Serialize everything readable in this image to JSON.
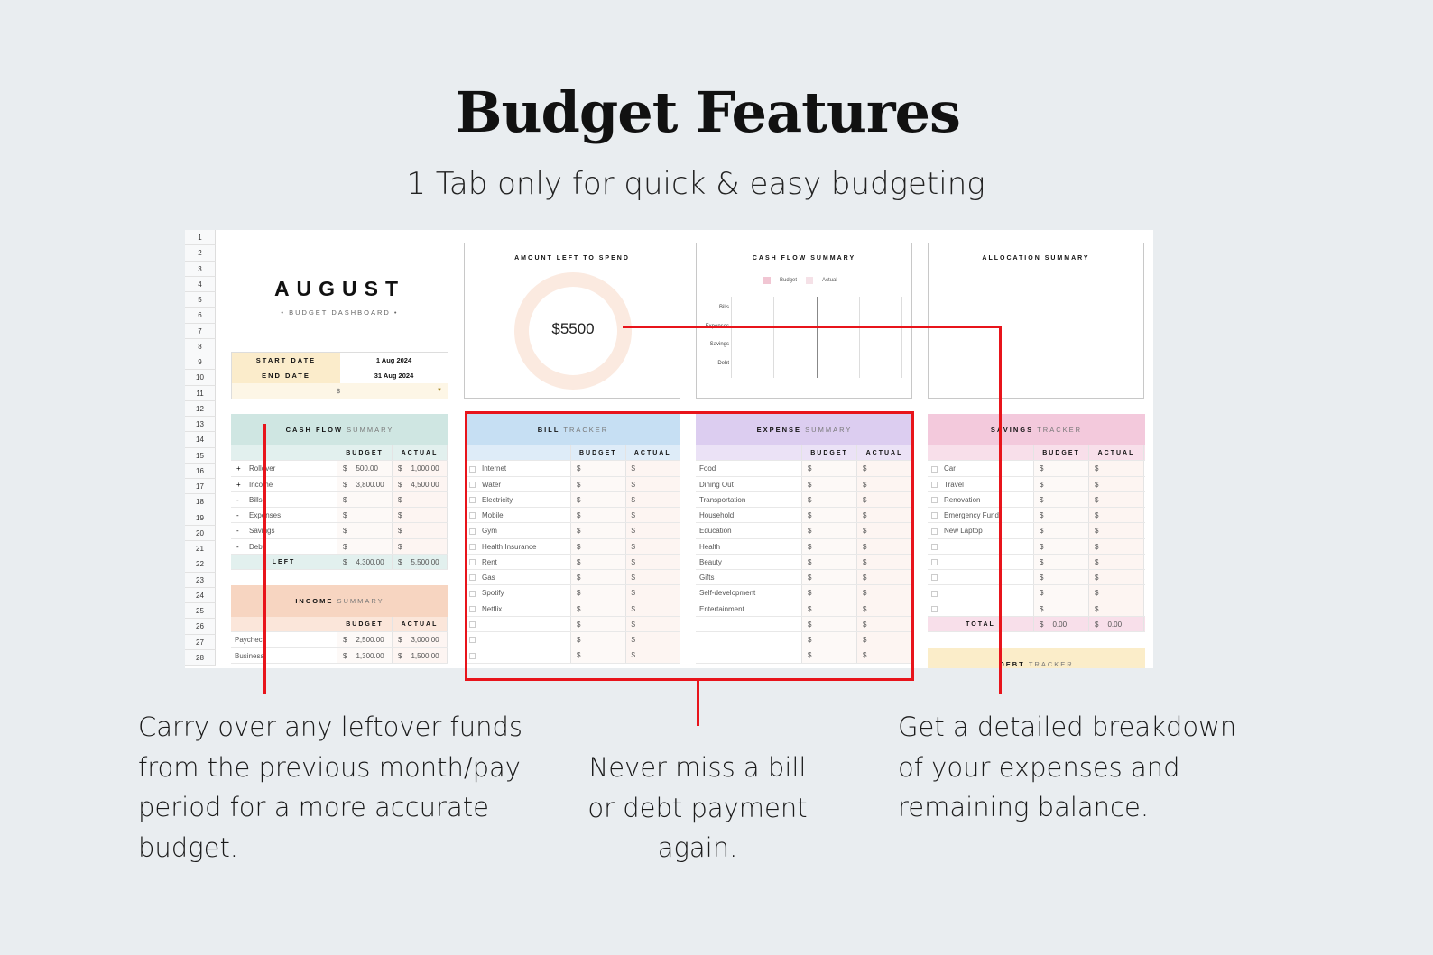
{
  "title": "Budget Features",
  "subtitle": "1 Tab only for quick & easy budgeting",
  "sheet": {
    "rows": [
      "1",
      "2",
      "3",
      "4",
      "5",
      "6",
      "7",
      "8",
      "9",
      "10",
      "11",
      "12",
      "13",
      "14",
      "15",
      "16",
      "17",
      "18",
      "19",
      "20",
      "21",
      "22",
      "23",
      "24",
      "25",
      "26",
      "27",
      "28"
    ],
    "month": "AUGUST",
    "dashboard_label": "• BUDGET DASHBOARD •",
    "start_label": "START DATE",
    "start_value": "1 Aug 2024",
    "end_label": "END DATE",
    "end_value": "31 Aug 2024",
    "currency": "$",
    "amount_left": {
      "title": "AMOUNT LEFT TO SPEND",
      "value": "$5500",
      "fill_percent": 0
    },
    "cashflow_chart": {
      "title": "CASH FLOW SUMMARY",
      "legend": [
        "Budget",
        "Actual"
      ],
      "categories": [
        "Bills",
        "Expenses",
        "Savings",
        "Debt"
      ],
      "colors": [
        "#f1c6d3",
        "#f5e1e7"
      ]
    },
    "allocation": {
      "title": "ALLOCATION SUMMARY"
    },
    "tables": [
      {
        "id": "cashflow",
        "bold": "CASH FLOW",
        "light": "SUMMARY",
        "color": "#cfe6e2",
        "subcolor": "#e2f0ee",
        "cols": [
          "BUDGET",
          "ACTUAL"
        ],
        "marker": "sign",
        "rows": [
          [
            "+",
            "Rollover",
            "500.00",
            "1,000.00"
          ],
          [
            "+",
            "Income",
            "3,800.00",
            "4,500.00"
          ],
          [
            "-",
            "Bills",
            "",
            ""
          ],
          [
            "-",
            "Expenses",
            "",
            ""
          ],
          [
            "-",
            "Savings",
            "",
            ""
          ],
          [
            "-",
            "Debt",
            "",
            ""
          ]
        ],
        "total": {
          "label": "LEFT",
          "budget": "4,300.00",
          "actual": "5,500.00"
        }
      },
      {
        "id": "income",
        "bold": "INCOME",
        "light": "SUMMARY",
        "color": "#f7d5c1",
        "subcolor": "#fbe6da",
        "cols": [
          "BUDGET",
          "ACTUAL"
        ],
        "marker": "none",
        "rows": [
          [
            "",
            "Paycheck",
            "2,500.00",
            "3,000.00"
          ],
          [
            "",
            "Business",
            "1,300.00",
            "1,500.00"
          ]
        ]
      },
      {
        "id": "bill",
        "bold": "BILL",
        "light": "TRACKER",
        "color": "#c6dff3",
        "subcolor": "#deecf8",
        "cols": [
          "BUDGET",
          "ACTUAL"
        ],
        "marker": "check",
        "rows": [
          [
            "",
            "Internet",
            "",
            ""
          ],
          [
            "",
            "Water",
            "",
            ""
          ],
          [
            "",
            "Electricity",
            "",
            ""
          ],
          [
            "",
            "Mobile",
            "",
            ""
          ],
          [
            "",
            "Gym",
            "",
            ""
          ],
          [
            "",
            "Health Insurance",
            "",
            ""
          ],
          [
            "",
            "Rent",
            "",
            ""
          ],
          [
            "",
            "Gas",
            "",
            ""
          ],
          [
            "",
            "Spotify",
            "",
            ""
          ],
          [
            "",
            "Netflix",
            "",
            ""
          ],
          [
            "",
            "",
            "",
            ""
          ],
          [
            "",
            "",
            "",
            ""
          ],
          [
            "",
            "",
            "",
            ""
          ]
        ]
      },
      {
        "id": "expense",
        "bold": "EXPENSE",
        "light": "SUMMARY",
        "color": "#dccdf0",
        "subcolor": "#ebe2f6",
        "cols": [
          "BUDGET",
          "ACTUAL"
        ],
        "marker": "none",
        "rows": [
          [
            "",
            "Food",
            "",
            ""
          ],
          [
            "",
            "Dining Out",
            "",
            ""
          ],
          [
            "",
            "Transportation",
            "",
            ""
          ],
          [
            "",
            "Household",
            "",
            ""
          ],
          [
            "",
            "Education",
            "",
            ""
          ],
          [
            "",
            "Health",
            "",
            ""
          ],
          [
            "",
            "Beauty",
            "",
            ""
          ],
          [
            "",
            "Gifts",
            "",
            ""
          ],
          [
            "",
            "Self-development",
            "",
            ""
          ],
          [
            "",
            "Entertainment",
            "",
            ""
          ],
          [
            "",
            "",
            "",
            ""
          ],
          [
            "",
            "",
            "",
            ""
          ],
          [
            "",
            "",
            "",
            ""
          ]
        ]
      },
      {
        "id": "savings",
        "bold": "SAVINGS",
        "light": "TRACKER",
        "color": "#f3c9dc",
        "subcolor": "#f8dfea",
        "cols": [
          "BUDGET",
          "ACTUAL"
        ],
        "marker": "check",
        "rows": [
          [
            "",
            "Car",
            "",
            ""
          ],
          [
            "",
            "Travel",
            "",
            ""
          ],
          [
            "",
            "Renovation",
            "",
            ""
          ],
          [
            "",
            "Emergency Fund",
            "",
            ""
          ],
          [
            "",
            "New Laptop",
            "",
            ""
          ],
          [
            "",
            "",
            "",
            ""
          ],
          [
            "",
            "",
            "",
            ""
          ],
          [
            "",
            "",
            "",
            ""
          ],
          [
            "",
            "",
            "",
            ""
          ],
          [
            "",
            "",
            "",
            ""
          ]
        ],
        "total": {
          "label": "TOTAL",
          "budget": "0.00",
          "actual": "0.00"
        }
      },
      {
        "id": "debt",
        "bold": "DEBT",
        "light": "TRACKER",
        "color": "#fbedc9",
        "subcolor": "#fdf4de",
        "cols": [],
        "marker": "none",
        "rows": []
      }
    ]
  },
  "callouts": {
    "left": [
      "Carry over any leftover funds",
      "from the previous month/pay",
      "period for a more accurate",
      "budget."
    ],
    "middle": [
      "Never miss a bill",
      "or debt payment",
      "again."
    ],
    "right": [
      "Get a detailed breakdown",
      "of your expenses and",
      "remaining balance."
    ]
  },
  "colors": {
    "highlight": "#e8141b",
    "background": "#e9edf0",
    "dates": "#fbeccb"
  }
}
